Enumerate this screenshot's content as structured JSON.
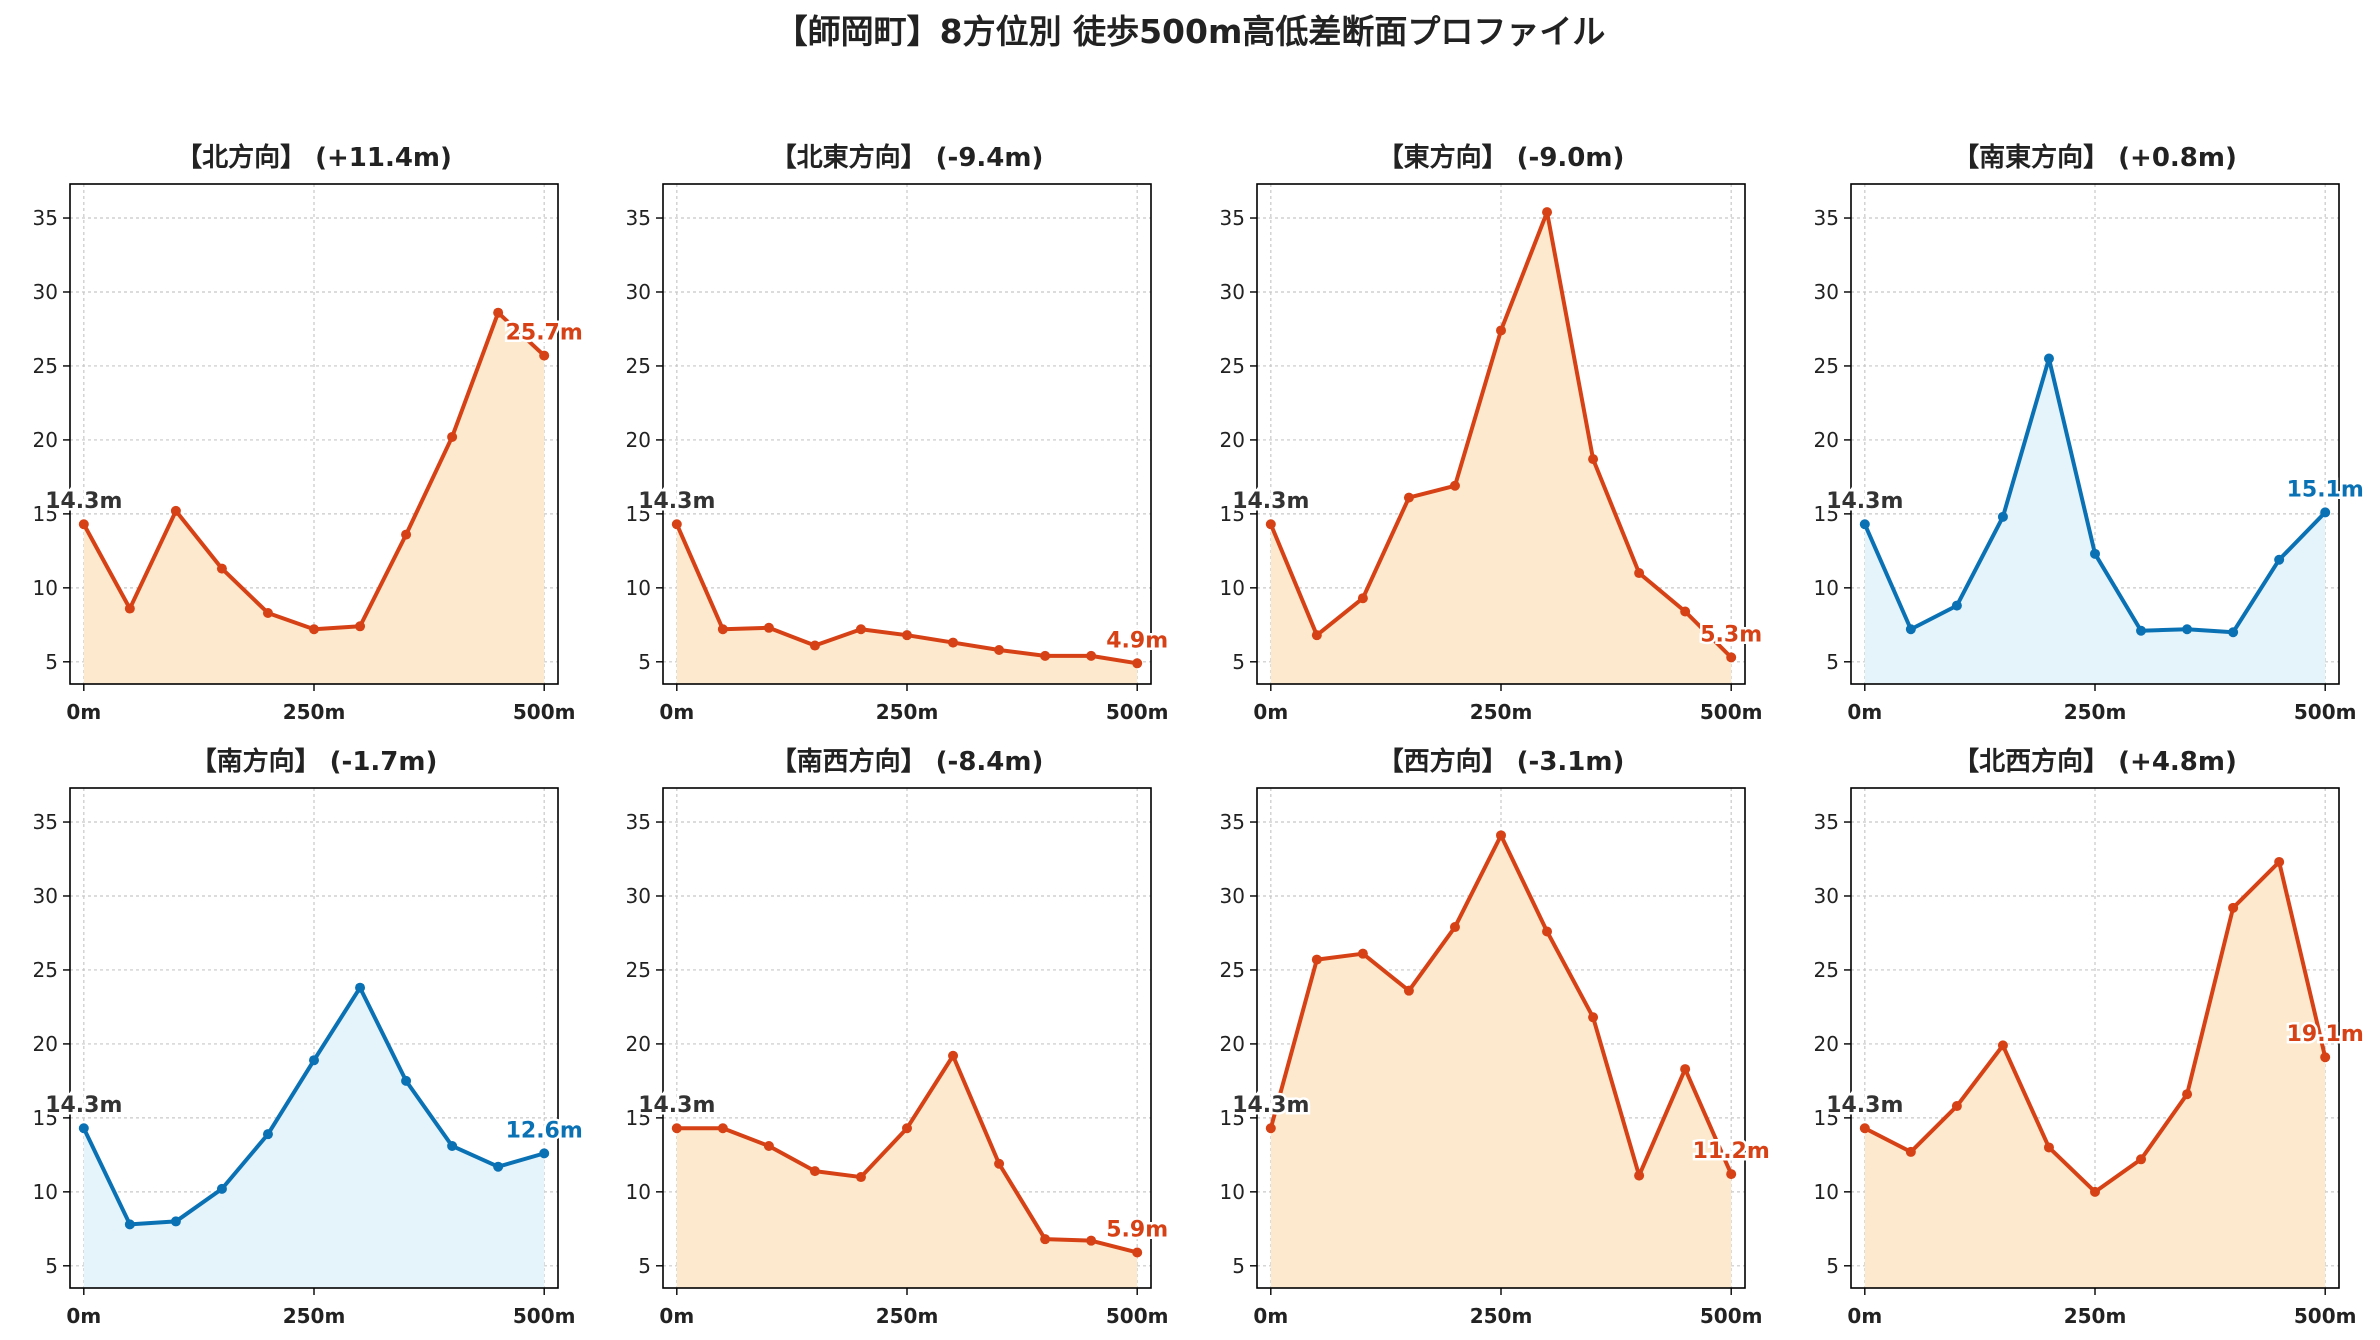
{
  "suptitle": "【師岡町】8方位別 徒歩500m高低差断面プロファイル",
  "colors": {
    "up_line": "#d64216",
    "up_fill": "#fde9cd",
    "down_line": "#0a72b4",
    "down_fill": "#e5f3fa",
    "grid": "#c8c8c8",
    "axis": "#000000",
    "text": "#222222",
    "start_label": "#333333"
  },
  "chart_data": [
    {
      "type": "area",
      "title": "【北方向】 (+11.4m)",
      "trend": "up",
      "x": [
        0,
        50,
        100,
        150,
        200,
        250,
        300,
        350,
        400,
        450,
        500
      ],
      "y": [
        14.3,
        8.6,
        15.2,
        11.3,
        8.3,
        7.2,
        7.4,
        13.6,
        20.2,
        28.6,
        25.7
      ],
      "start_label": "14.3m",
      "end_label": "25.7m",
      "xticks": [
        "0m",
        "250m",
        "500m"
      ],
      "xlim": [
        -15,
        515
      ],
      "yticks": [
        5,
        10,
        15,
        20,
        25,
        30,
        35
      ],
      "ylim": [
        3.5,
        37.3
      ],
      "grid": true
    },
    {
      "type": "area",
      "title": "【北東方向】 (-9.4m)",
      "trend": "up",
      "x": [
        0,
        50,
        100,
        150,
        200,
        250,
        300,
        350,
        400,
        450,
        500
      ],
      "y": [
        14.3,
        7.2,
        7.3,
        6.1,
        7.2,
        6.8,
        6.3,
        5.8,
        5.4,
        5.4,
        4.9
      ],
      "start_label": "14.3m",
      "end_label": "4.9m",
      "xticks": [
        "0m",
        "250m",
        "500m"
      ],
      "xlim": [
        -15,
        515
      ],
      "yticks": [
        5,
        10,
        15,
        20,
        25,
        30,
        35
      ],
      "ylim": [
        3.5,
        37.3
      ],
      "grid": true
    },
    {
      "type": "area",
      "title": "【東方向】 (-9.0m)",
      "trend": "up",
      "x": [
        0,
        50,
        100,
        150,
        200,
        250,
        300,
        350,
        400,
        450,
        500
      ],
      "y": [
        14.3,
        6.8,
        9.3,
        16.1,
        16.9,
        27.4,
        35.4,
        18.7,
        11.0,
        8.4,
        5.3
      ],
      "start_label": "14.3m",
      "end_label": "5.3m",
      "xticks": [
        "0m",
        "250m",
        "500m"
      ],
      "xlim": [
        -15,
        515
      ],
      "yticks": [
        5,
        10,
        15,
        20,
        25,
        30,
        35
      ],
      "ylim": [
        3.5,
        37.3
      ],
      "grid": true
    },
    {
      "type": "area",
      "title": "【南東方向】 (+0.8m)",
      "trend": "down",
      "x": [
        0,
        50,
        100,
        150,
        200,
        250,
        300,
        350,
        400,
        450,
        500
      ],
      "y": [
        14.3,
        7.2,
        8.8,
        14.8,
        25.5,
        12.3,
        7.1,
        7.2,
        7.0,
        11.9,
        15.1
      ],
      "start_label": "14.3m",
      "end_label": "15.1m",
      "xticks": [
        "0m",
        "250m",
        "500m"
      ],
      "xlim": [
        -15,
        515
      ],
      "yticks": [
        5,
        10,
        15,
        20,
        25,
        30,
        35
      ],
      "ylim": [
        3.5,
        37.3
      ],
      "grid": true
    },
    {
      "type": "area",
      "title": "【南方向】 (-1.7m)",
      "trend": "down",
      "x": [
        0,
        50,
        100,
        150,
        200,
        250,
        300,
        350,
        400,
        450,
        500
      ],
      "y": [
        14.3,
        7.8,
        8.0,
        10.2,
        13.9,
        18.9,
        23.8,
        17.5,
        13.1,
        11.7,
        12.6
      ],
      "start_label": "14.3m",
      "end_label": "12.6m",
      "xticks": [
        "0m",
        "250m",
        "500m"
      ],
      "xlim": [
        -15,
        515
      ],
      "yticks": [
        5,
        10,
        15,
        20,
        25,
        30,
        35
      ],
      "ylim": [
        3.5,
        37.3
      ],
      "grid": true
    },
    {
      "type": "area",
      "title": "【南西方向】 (-8.4m)",
      "trend": "up",
      "x": [
        0,
        50,
        100,
        150,
        200,
        250,
        300,
        350,
        400,
        450,
        500
      ],
      "y": [
        14.3,
        14.3,
        13.1,
        11.4,
        11.0,
        14.3,
        19.2,
        11.9,
        6.8,
        6.7,
        5.9
      ],
      "start_label": "14.3m",
      "end_label": "5.9m",
      "xticks": [
        "0m",
        "250m",
        "500m"
      ],
      "xlim": [
        -15,
        515
      ],
      "yticks": [
        5,
        10,
        15,
        20,
        25,
        30,
        35
      ],
      "ylim": [
        3.5,
        37.3
      ],
      "grid": true
    },
    {
      "type": "area",
      "title": "【西方向】 (-3.1m)",
      "trend": "up",
      "x": [
        0,
        50,
        100,
        150,
        200,
        250,
        300,
        350,
        400,
        450,
        500
      ],
      "y": [
        14.3,
        25.7,
        26.1,
        23.6,
        27.9,
        34.1,
        27.6,
        21.8,
        11.1,
        18.3,
        11.2
      ],
      "start_label": "14.3m",
      "end_label": "11.2m",
      "xticks": [
        "0m",
        "250m",
        "500m"
      ],
      "xlim": [
        -15,
        515
      ],
      "yticks": [
        5,
        10,
        15,
        20,
        25,
        30,
        35
      ],
      "ylim": [
        3.5,
        37.3
      ],
      "grid": true
    },
    {
      "type": "area",
      "title": "【北西方向】 (+4.8m)",
      "trend": "up",
      "x": [
        0,
        50,
        100,
        150,
        200,
        250,
        300,
        350,
        400,
        450,
        500
      ],
      "y": [
        14.3,
        12.7,
        15.8,
        19.9,
        13.0,
        10.0,
        12.2,
        16.6,
        29.2,
        32.3,
        19.1
      ],
      "start_label": "14.3m",
      "end_label": "19.1m",
      "xticks": [
        "0m",
        "250m",
        "500m"
      ],
      "xlim": [
        -15,
        515
      ],
      "yticks": [
        5,
        10,
        15,
        20,
        25,
        30,
        35
      ],
      "ylim": [
        3.5,
        37.3
      ],
      "grid": true
    }
  ]
}
